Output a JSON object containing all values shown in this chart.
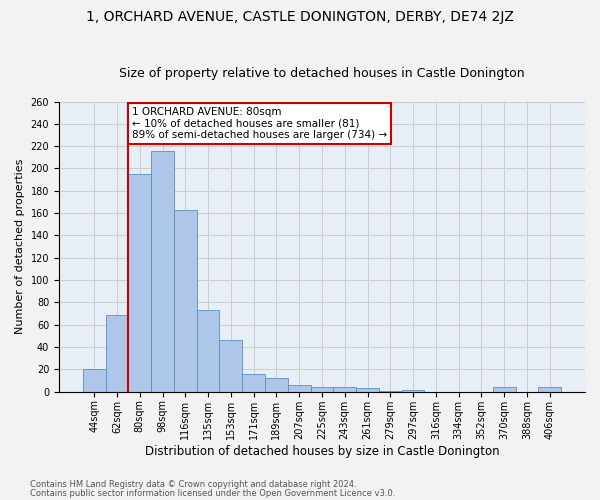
{
  "title": "1, ORCHARD AVENUE, CASTLE DONINGTON, DERBY, DE74 2JZ",
  "subtitle": "Size of property relative to detached houses in Castle Donington",
  "xlabel": "Distribution of detached houses by size in Castle Donington",
  "ylabel": "Number of detached properties",
  "categories": [
    "44sqm",
    "62sqm",
    "80sqm",
    "98sqm",
    "116sqm",
    "135sqm",
    "153sqm",
    "171sqm",
    "189sqm",
    "207sqm",
    "225sqm",
    "243sqm",
    "261sqm",
    "279sqm",
    "297sqm",
    "316sqm",
    "334sqm",
    "352sqm",
    "370sqm",
    "388sqm",
    "406sqm"
  ],
  "values": [
    20,
    69,
    195,
    216,
    163,
    73,
    46,
    16,
    12,
    6,
    4,
    4,
    3,
    1,
    2,
    0,
    0,
    0,
    4,
    0,
    4
  ],
  "bar_color": "#aec6e8",
  "bar_edge_color": "#5a8fc0",
  "vline_x_idx": 2,
  "vline_color": "#cc0000",
  "annotation_text": "1 ORCHARD AVENUE: 80sqm\n← 10% of detached houses are smaller (81)\n89% of semi-detached houses are larger (734) →",
  "annotation_box_color": "#ffffff",
  "annotation_box_edge_color": "#cc0000",
  "ylim": [
    0,
    260
  ],
  "yticks": [
    0,
    20,
    40,
    60,
    80,
    100,
    120,
    140,
    160,
    180,
    200,
    220,
    240,
    260
  ],
  "grid_color": "#cccccc",
  "bg_color": "#e8eef5",
  "fig_bg_color": "#f2f2f2",
  "footer1": "Contains HM Land Registry data © Crown copyright and database right 2024.",
  "footer2": "Contains public sector information licensed under the Open Government Licence v3.0.",
  "title_fontsize": 10,
  "subtitle_fontsize": 9,
  "xlabel_fontsize": 8.5,
  "ylabel_fontsize": 8,
  "tick_fontsize": 7,
  "annotation_fontsize": 7.5,
  "footer_fontsize": 6
}
